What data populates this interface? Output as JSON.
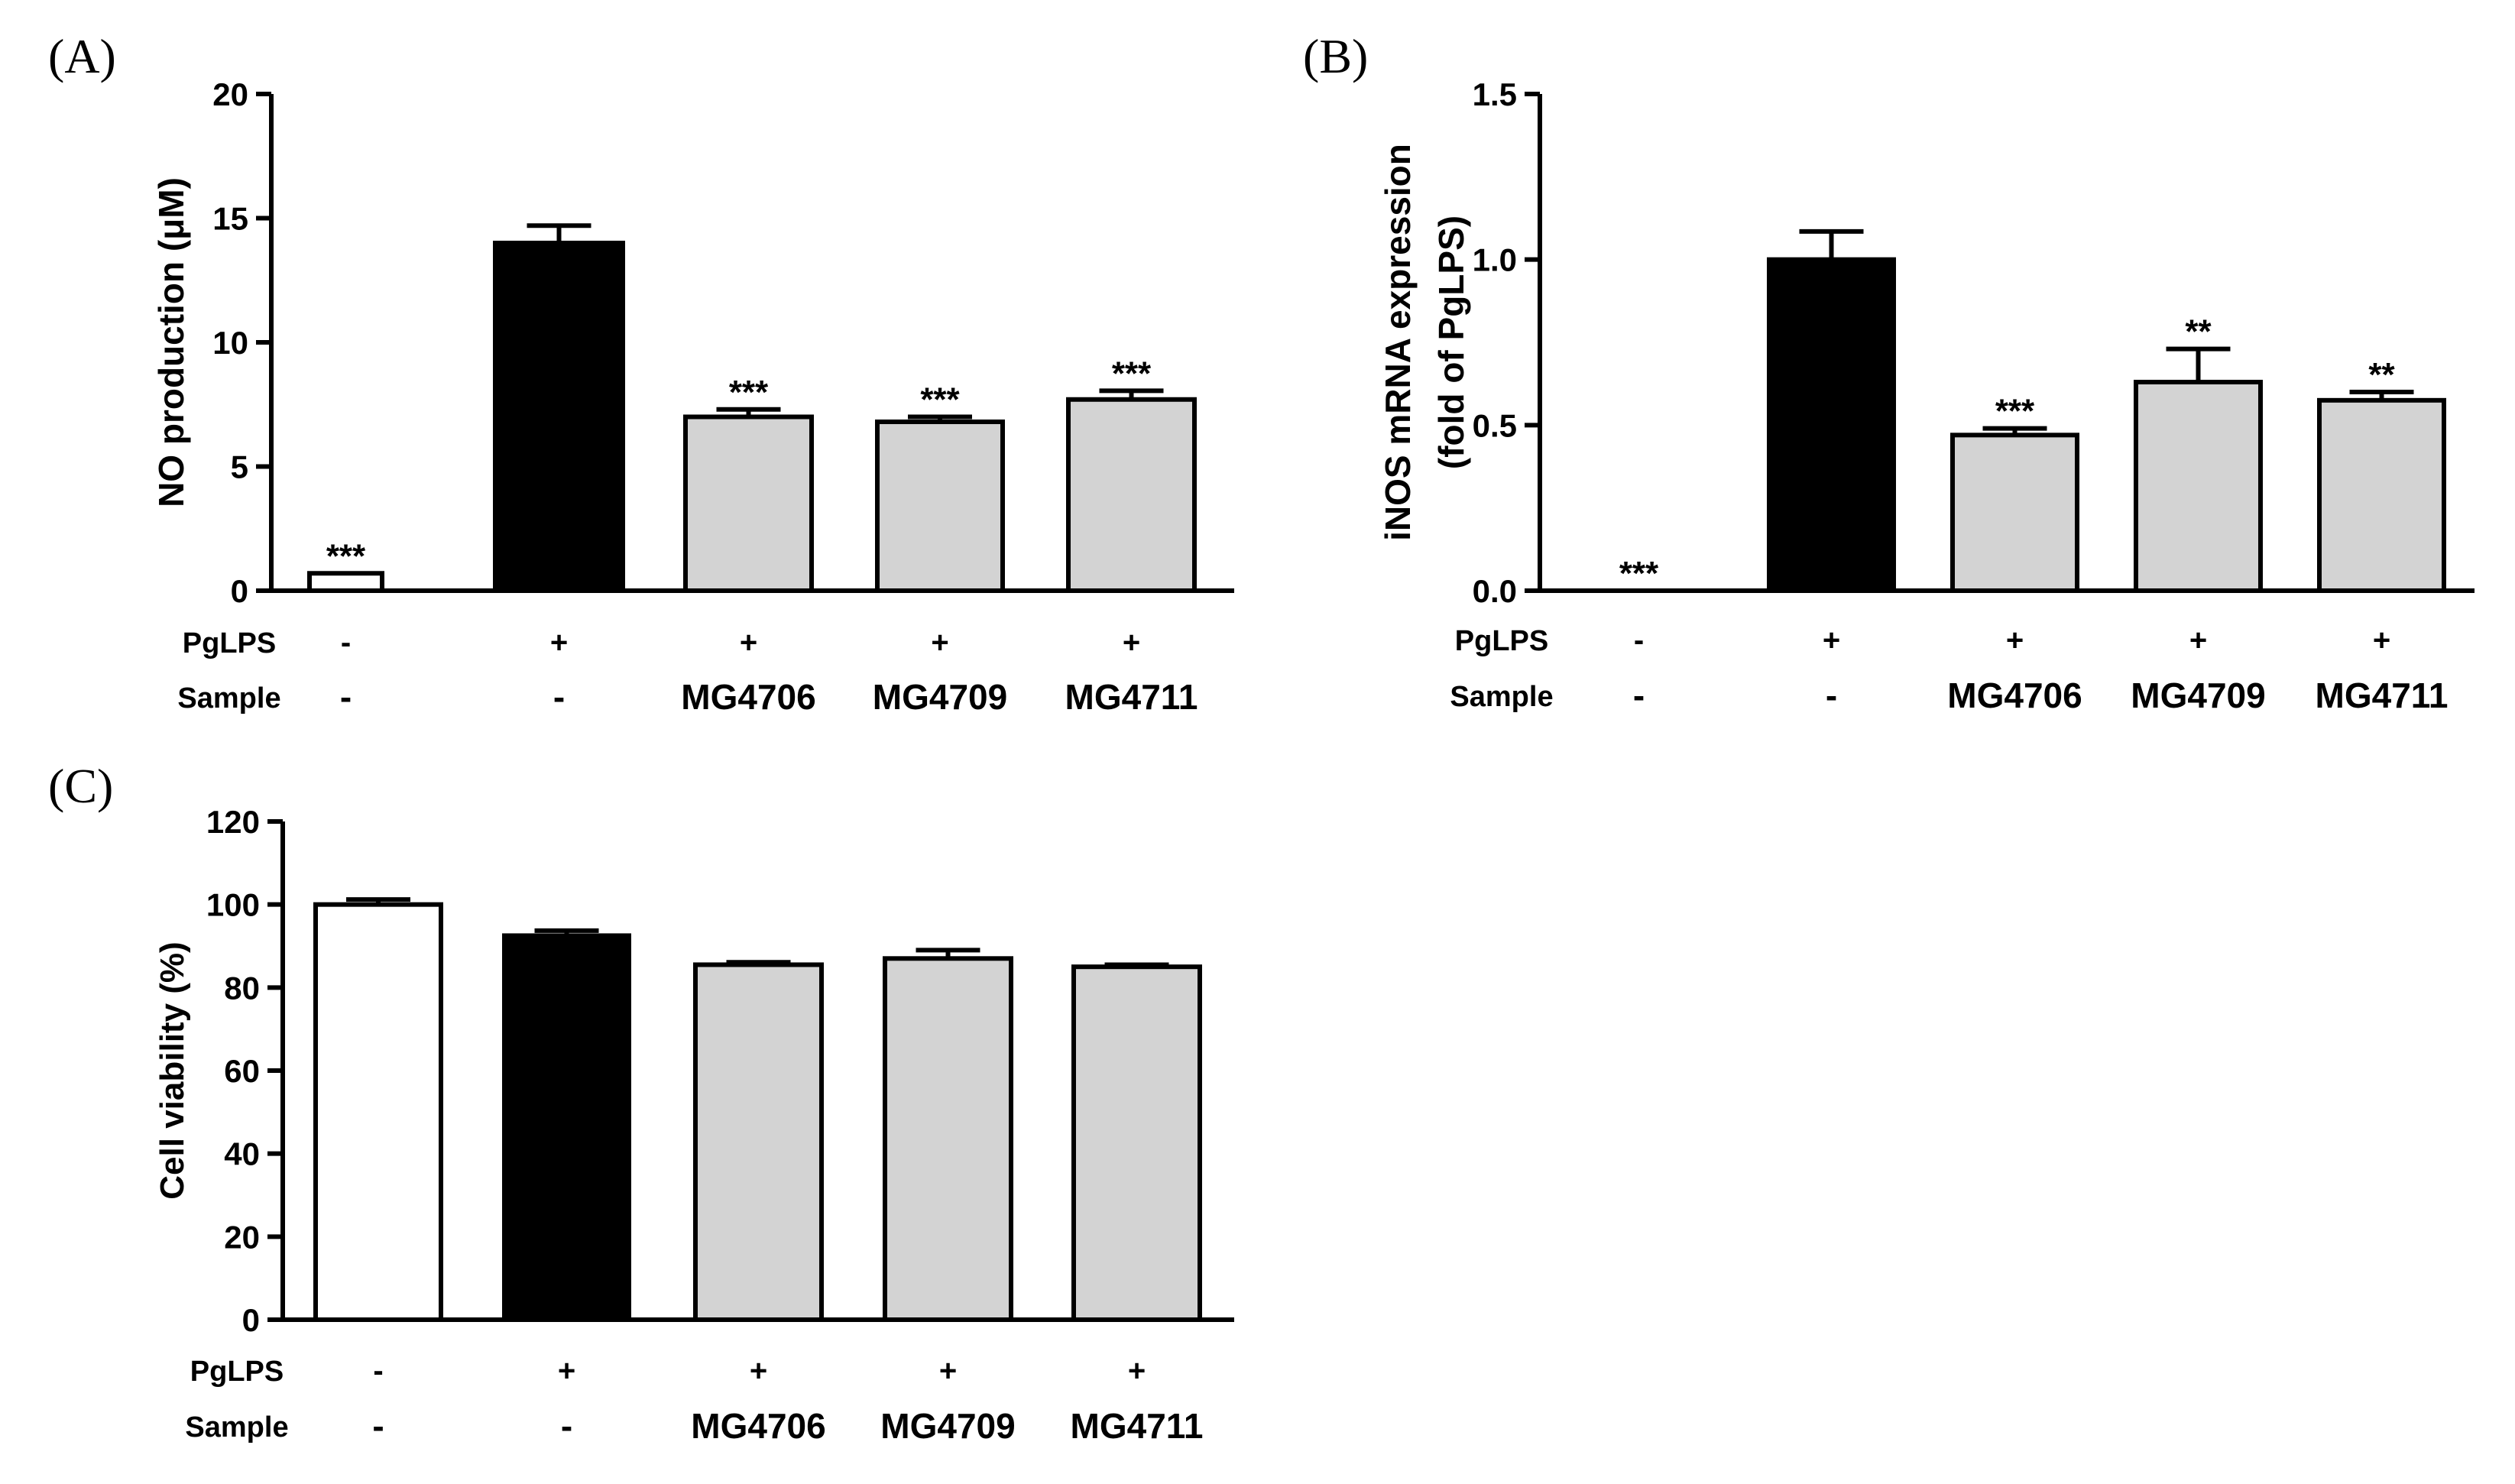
{
  "row_labels": {
    "pglps": "PgLPS",
    "sample": "Sample"
  },
  "colors": {
    "white": "#ffffff",
    "black": "#000000",
    "grey": "#d3d3d3",
    "stroke": "#000000"
  },
  "chart_data": [
    {
      "panel": "(A)",
      "type": "bar",
      "ylabel": "NO production (μM)",
      "ylim": [
        0,
        20
      ],
      "yticks": [
        0,
        5,
        10,
        15,
        20
      ],
      "ytick_labels": [
        "0",
        "5",
        "10",
        "15",
        "20"
      ],
      "pglps": [
        "-",
        "+",
        "+",
        "+",
        "+"
      ],
      "sample": [
        "-",
        "-",
        "MG4706",
        "MG4709",
        "MG4711"
      ],
      "values": [
        0.7,
        14.0,
        7.0,
        6.8,
        7.7
      ],
      "errors": [
        0,
        0.7,
        0.3,
        0.2,
        0.35
      ],
      "significance": [
        "***",
        "",
        "***",
        "***",
        "***"
      ],
      "fills": [
        "white",
        "black",
        "grey",
        "grey",
        "grey"
      ]
    },
    {
      "panel": "(B)",
      "type": "bar",
      "ylabel_lines": [
        "iNOS mRNA expression",
        "(fold of PgLPS)"
      ],
      "ylim": [
        0,
        1.5
      ],
      "yticks": [
        0,
        0.5,
        1.0,
        1.5
      ],
      "ytick_labels": [
        "0.0",
        "0.5",
        "1.0",
        "1.5"
      ],
      "pglps": [
        "-",
        "+",
        "+",
        "+",
        "+"
      ],
      "sample": [
        "-",
        "-",
        "MG4706",
        "MG4709",
        "MG4711"
      ],
      "values": [
        0.0,
        1.0,
        0.47,
        0.63,
        0.575
      ],
      "errors": [
        0,
        0.085,
        0.02,
        0.1,
        0.025
      ],
      "significance": [
        "***",
        "",
        "***",
        "**",
        "**"
      ],
      "fills": [
        "white",
        "black",
        "grey",
        "grey",
        "grey"
      ]
    },
    {
      "panel": "(C)",
      "type": "bar",
      "ylabel": "Cell viability (%)",
      "ylim": [
        0,
        120
      ],
      "yticks": [
        0,
        20,
        40,
        60,
        80,
        100,
        120
      ],
      "ytick_labels": [
        "0",
        "20",
        "40",
        "60",
        "80",
        "100",
        "120"
      ],
      "pglps": [
        "-",
        "+",
        "+",
        "+",
        "+"
      ],
      "sample": [
        "-",
        "-",
        "MG4706",
        "MG4709",
        "MG4711"
      ],
      "values": [
        100,
        92.5,
        85.5,
        87.0,
        85.0
      ],
      "errors": [
        1.2,
        1.2,
        0.6,
        2.0,
        0.5
      ],
      "significance": [
        "",
        "",
        "",
        "",
        ""
      ],
      "fills": [
        "white",
        "black",
        "grey",
        "grey",
        "grey"
      ]
    }
  ]
}
